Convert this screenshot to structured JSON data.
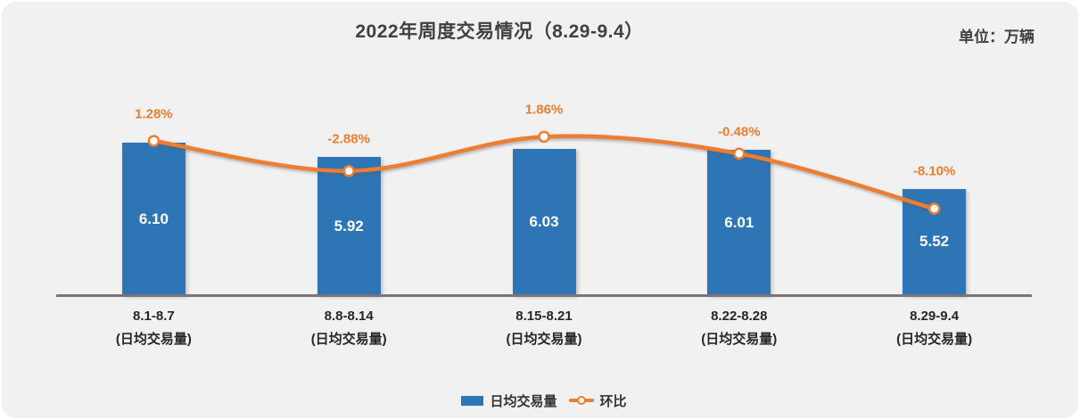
{
  "header": {
    "title": "2022年周度交易情况（8.29-9.4）",
    "unit_label": "单位：万辆"
  },
  "chart_data": {
    "type": "bar",
    "subtype": "bar+line combo",
    "title": "2022年周度交易情况（8.29-9.4）",
    "unit": "万辆",
    "categories": [
      "8.1-8.7",
      "8.8-8.14",
      "8.15-8.21",
      "8.22-8.28",
      "8.29-9.4"
    ],
    "category_sublabel": "(日均交易量)",
    "series": [
      {
        "name": "日均交易量",
        "type": "bar",
        "values": [
          6.1,
          5.92,
          6.03,
          6.01,
          5.52
        ],
        "value_labels": [
          "6.10",
          "5.92",
          "6.03",
          "6.01",
          "5.52"
        ]
      },
      {
        "name": "环比",
        "type": "line",
        "values_pct": [
          1.28,
          -2.88,
          1.86,
          -0.48,
          -8.1
        ],
        "point_labels": [
          "1.28%",
          "-2.88%",
          "1.86%",
          "-0.48%",
          "-8.10%"
        ]
      }
    ],
    "legend_position": "bottom",
    "y_axis_labels_visible": false,
    "grid": false
  },
  "colors": {
    "bar": "#2E75B6",
    "line": "#ED7D31",
    "bar_value_label": "#FFFFFF",
    "pct_label": "#ED7D31",
    "title_text": "#404040",
    "axis_label_text": "#262626",
    "axis_line": "#7B757B",
    "background": "#F1F1F1"
  }
}
